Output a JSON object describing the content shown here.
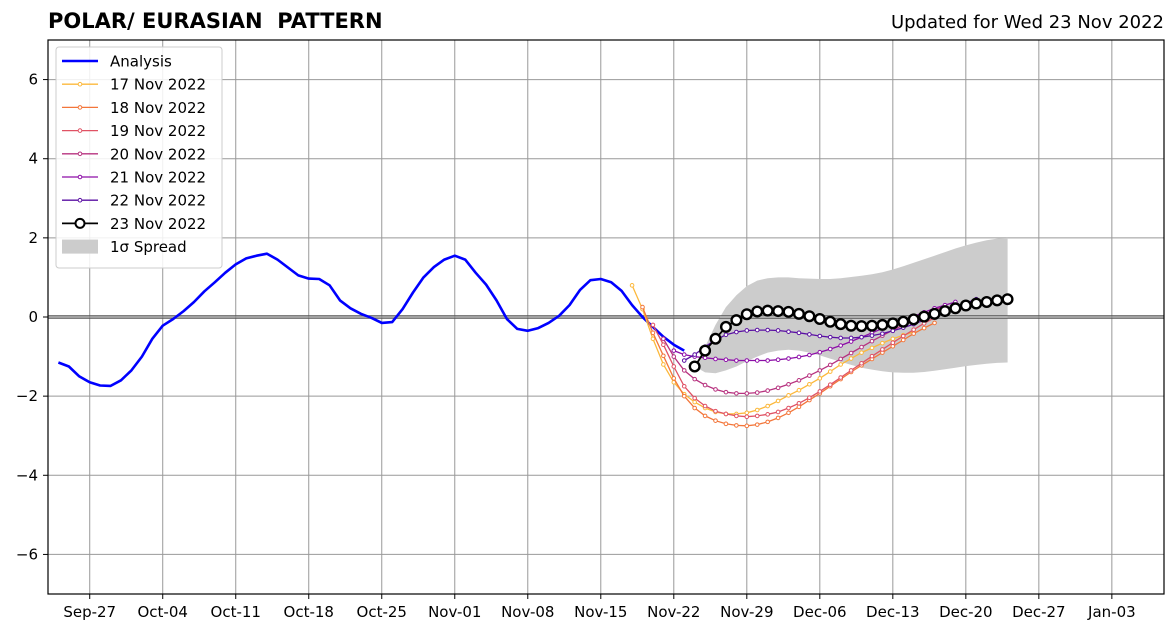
{
  "header": {
    "title": "POLAR/ EURASIAN  PATTERN",
    "updated": "Updated for Wed 23 Nov 2022"
  },
  "chart_data": {
    "type": "line",
    "title": "POLAR/ EURASIAN  PATTERN",
    "subtitle": "Updated for Wed 23 Nov 2022",
    "xlabel": "",
    "ylabel": "",
    "xlim": [
      "2022-09-23",
      "2023-01-08"
    ],
    "ylim": [
      -7,
      7
    ],
    "grid": true,
    "legend_position": "upper-left",
    "x_ticks": [
      "2022-09-27",
      "2022-10-04",
      "2022-10-11",
      "2022-10-18",
      "2022-10-25",
      "2022-11-01",
      "2022-11-08",
      "2022-11-15",
      "2022-11-22",
      "2022-11-29",
      "2022-12-06",
      "2022-12-13",
      "2022-12-20",
      "2022-12-27",
      "2023-01-03"
    ],
    "x_tick_labels": [
      "Sep-27",
      "Oct-04",
      "Oct-11",
      "Oct-18",
      "Oct-25",
      "Nov-01",
      "Nov-08",
      "Nov-15",
      "Nov-22",
      "Nov-29",
      "Dec-06",
      "Dec-13",
      "Dec-20",
      "Dec-27",
      "Jan-03"
    ],
    "y_ticks": [
      -6,
      -4,
      -2,
      0,
      2,
      4,
      6
    ],
    "y_tick_labels": [
      "−6",
      "−4",
      "−2",
      "0",
      "2",
      "4",
      "6"
    ],
    "analysis": {
      "name": "Analysis",
      "color": "#0000ff",
      "start_date": "2022-09-24",
      "values": [
        -1.15,
        -1.25,
        -1.5,
        -1.65,
        -1.73,
        -1.74,
        -1.6,
        -1.35,
        -1.0,
        -0.55,
        -0.22,
        -0.05,
        0.15,
        0.38,
        0.65,
        0.88,
        1.12,
        1.33,
        1.48,
        1.55,
        1.6,
        1.45,
        1.25,
        1.05,
        0.97,
        0.96,
        0.8,
        0.42,
        0.22,
        0.08,
        -0.02,
        -0.15,
        -0.13,
        0.2,
        0.62,
        1.0,
        1.26,
        1.45,
        1.55,
        1.45,
        1.12,
        0.82,
        0.42,
        -0.05,
        -0.3,
        -0.35,
        -0.28,
        -0.15,
        0.03,
        0.3,
        0.68,
        0.93,
        0.96,
        0.88,
        0.66,
        0.3,
        0.0,
        -0.25,
        -0.5,
        -0.7,
        -0.85
      ]
    },
    "forecasts": [
      {
        "name": "17 Nov 2022",
        "color": "#fcb83b",
        "start_date": "2022-11-18",
        "values": [
          0.8,
          0.2,
          -0.55,
          -1.2,
          -1.65,
          -1.95,
          -2.15,
          -2.3,
          -2.4,
          -2.45,
          -2.45,
          -2.42,
          -2.35,
          -2.25,
          -2.12,
          -1.98,
          -1.85,
          -1.7,
          -1.55,
          -1.38,
          -1.2,
          -1.05,
          -0.9,
          -0.78,
          -0.66,
          -0.55,
          -0.46,
          -0.38
        ]
      },
      {
        "name": "18 Nov 2022",
        "color": "#f3763a",
        "start_date": "2022-11-19",
        "values": [
          0.25,
          -0.4,
          -0.98,
          -1.55,
          -2.0,
          -2.3,
          -2.5,
          -2.62,
          -2.7,
          -2.74,
          -2.75,
          -2.72,
          -2.65,
          -2.55,
          -2.42,
          -2.27,
          -2.1,
          -1.93,
          -1.75,
          -1.57,
          -1.39,
          -1.22,
          -1.06,
          -0.9,
          -0.74,
          -0.58,
          -0.42,
          -0.28,
          -0.15
        ]
      },
      {
        "name": "19 Nov 2022",
        "color": "#e05264",
        "start_date": "2022-11-20",
        "values": [
          -0.2,
          -0.7,
          -1.25,
          -1.75,
          -2.05,
          -2.25,
          -2.38,
          -2.45,
          -2.5,
          -2.52,
          -2.5,
          -2.46,
          -2.4,
          -2.3,
          -2.18,
          -2.04,
          -1.88,
          -1.71,
          -1.53,
          -1.35,
          -1.17,
          -0.99,
          -0.82,
          -0.65,
          -0.48,
          -0.32,
          -0.16,
          -0.02
        ]
      },
      {
        "name": "20 Nov 2022",
        "color": "#b7327f",
        "start_date": "2022-11-21",
        "values": [
          -0.55,
          -1.0,
          -1.35,
          -1.57,
          -1.72,
          -1.83,
          -1.9,
          -1.93,
          -1.93,
          -1.91,
          -1.86,
          -1.79,
          -1.7,
          -1.6,
          -1.48,
          -1.35,
          -1.21,
          -1.06,
          -0.91,
          -0.76,
          -0.61,
          -0.47,
          -0.33,
          -0.2,
          -0.07,
          0.06,
          0.18,
          0.28
        ]
      },
      {
        "name": "21 Nov 2022",
        "color": "#8d0ea8",
        "start_date": "2022-11-22",
        "values": [
          -0.85,
          -0.95,
          -1.0,
          -1.03,
          -1.06,
          -1.08,
          -1.1,
          -1.1,
          -1.1,
          -1.1,
          -1.08,
          -1.05,
          -1.01,
          -0.96,
          -0.89,
          -0.81,
          -0.72,
          -0.62,
          -0.51,
          -0.4,
          -0.29,
          -0.18,
          -0.08,
          0.02,
          0.12,
          0.22,
          0.3,
          0.38
        ]
      },
      {
        "name": "22 Nov 2022",
        "color": "#5a0fa3",
        "start_date": "2022-11-23",
        "values": [
          -1.1,
          -0.95,
          -0.75,
          -0.58,
          -0.45,
          -0.38,
          -0.34,
          -0.33,
          -0.33,
          -0.34,
          -0.37,
          -0.4,
          -0.44,
          -0.48,
          -0.51,
          -0.53,
          -0.53,
          -0.51,
          -0.47,
          -0.42,
          -0.35,
          -0.27,
          -0.18,
          -0.08,
          0.03,
          0.14,
          0.25,
          0.35,
          0.45
        ]
      },
      {
        "name": "23 Nov 2022",
        "color": "#000000",
        "start_date": "2022-11-24",
        "values": [
          -1.25,
          -0.85,
          -0.55,
          -0.25,
          -0.08,
          0.07,
          0.14,
          0.16,
          0.15,
          0.13,
          0.08,
          0.02,
          -0.05,
          -0.12,
          -0.18,
          -0.22,
          -0.23,
          -0.22,
          -0.2,
          -0.16,
          -0.12,
          -0.06,
          0.01,
          0.08,
          0.15,
          0.22,
          0.29,
          0.34,
          0.38,
          0.42,
          0.45
        ]
      }
    ],
    "spread": {
      "name": "1σ Spread",
      "color": "#cccccc",
      "start_date": "2022-11-24",
      "upper": [
        -1.25,
        -0.75,
        -0.2,
        0.25,
        0.55,
        0.78,
        0.92,
        0.98,
        1.0,
        1.0,
        0.98,
        0.97,
        0.96,
        0.96,
        0.98,
        1.01,
        1.04,
        1.08,
        1.13,
        1.2,
        1.28,
        1.37,
        1.46,
        1.55,
        1.64,
        1.73,
        1.81,
        1.88,
        1.94,
        1.98,
        2.0
      ],
      "lower": [
        -1.25,
        -1.4,
        -1.42,
        -1.35,
        -1.25,
        -1.12,
        -1.0,
        -0.9,
        -0.85,
        -0.83,
        -0.85,
        -0.9,
        -0.97,
        -1.05,
        -1.13,
        -1.21,
        -1.28,
        -1.33,
        -1.37,
        -1.4,
        -1.41,
        -1.41,
        -1.39,
        -1.36,
        -1.32,
        -1.28,
        -1.24,
        -1.21,
        -1.18,
        -1.16,
        -1.15
      ]
    }
  }
}
